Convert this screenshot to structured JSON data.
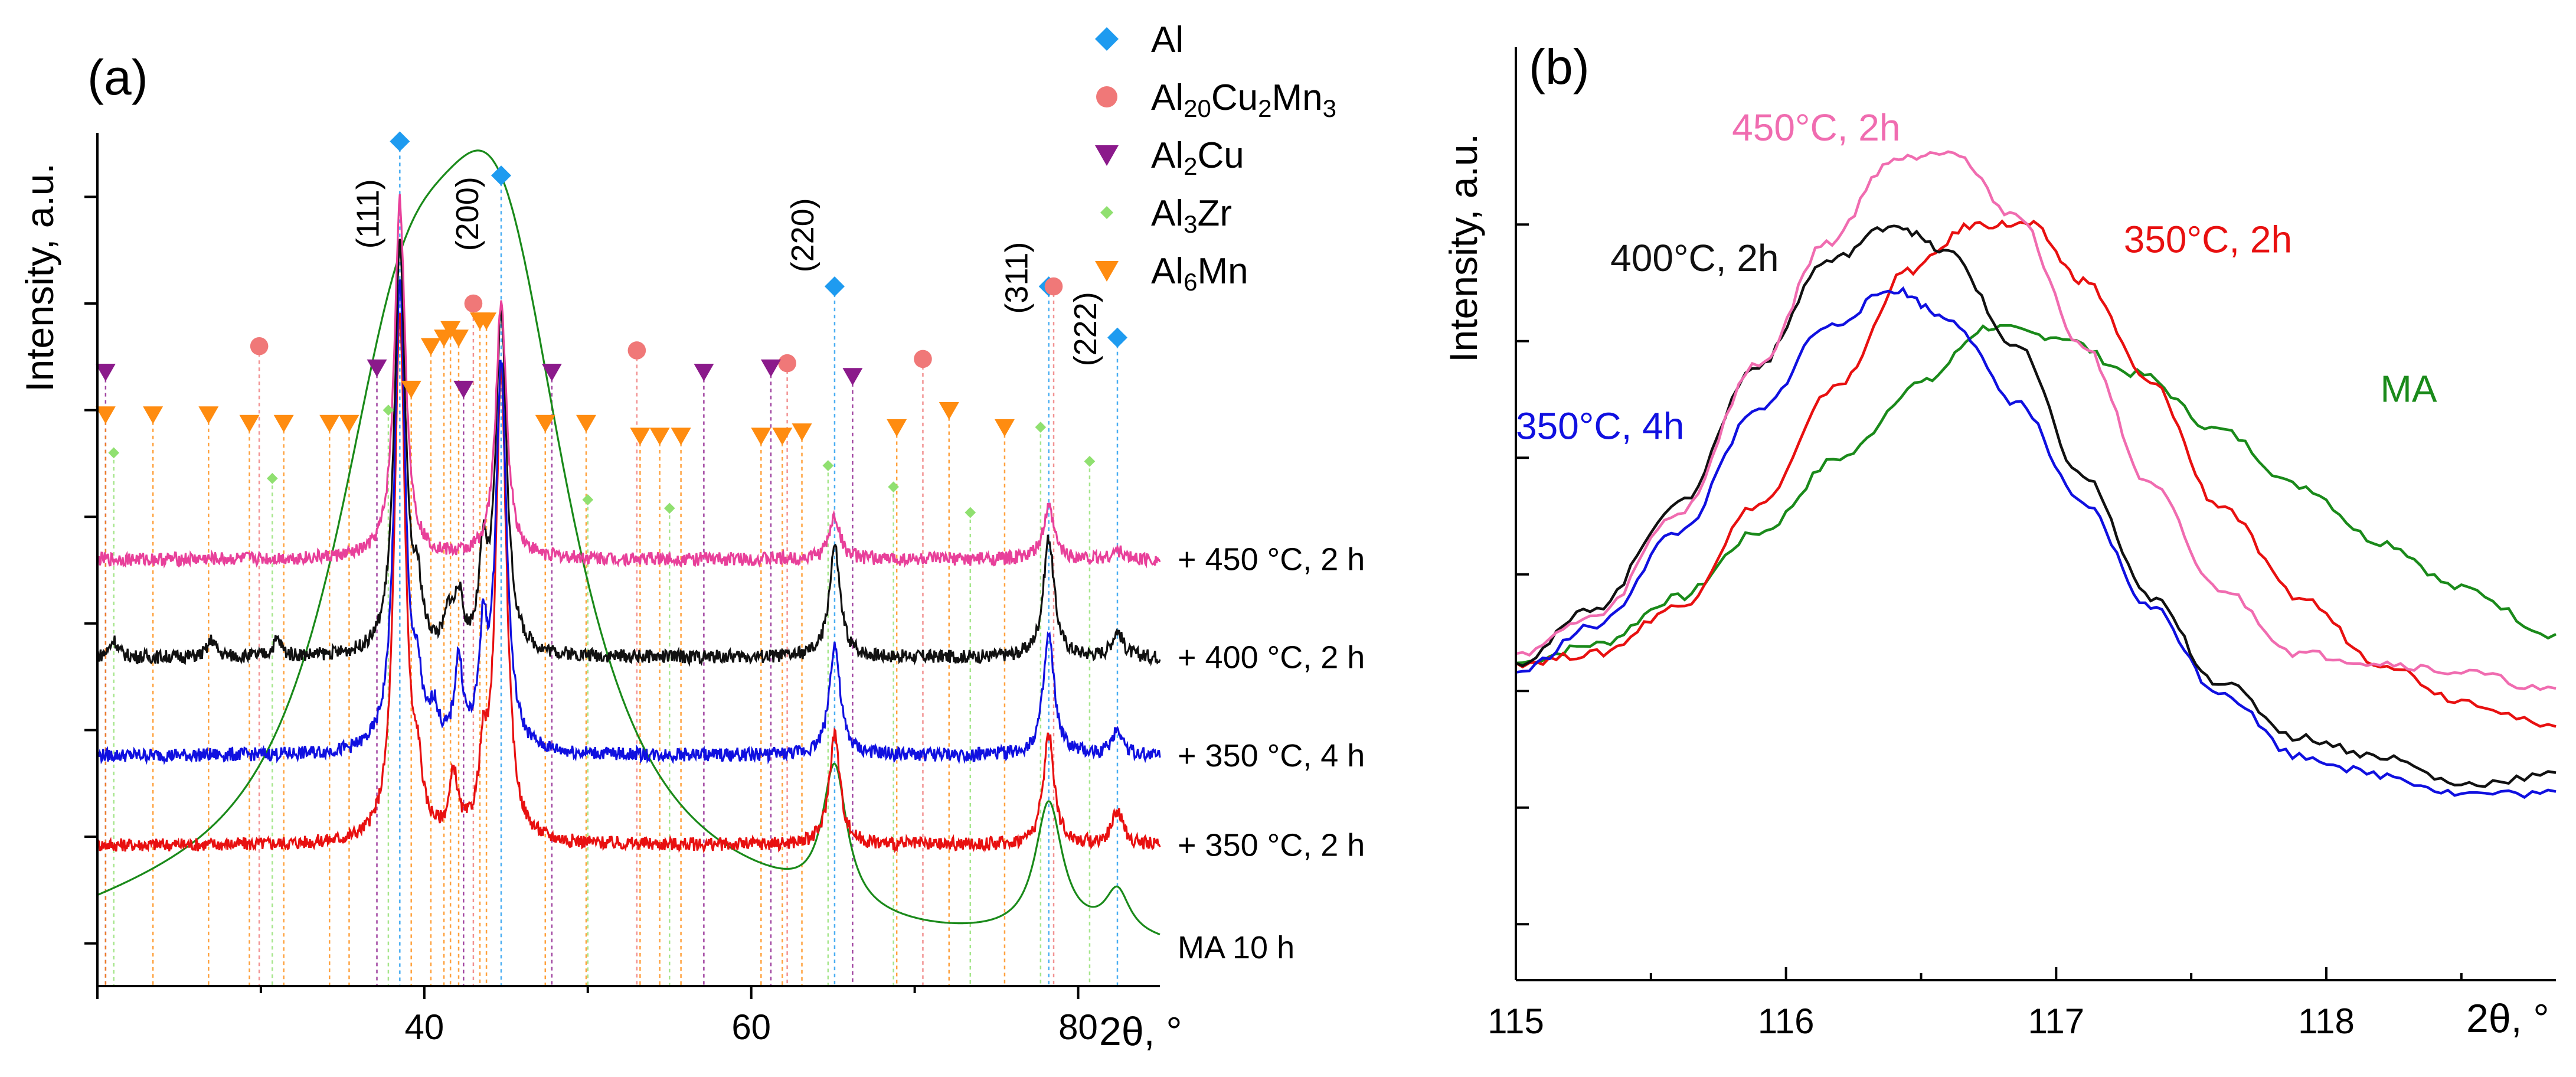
{
  "chart_data": [
    {
      "panel": "(a)",
      "type": "line",
      "title": "",
      "xlabel": "2θ, °",
      "ylabel": "Intensity, a.u.",
      "xlim": [
        20,
        85
      ],
      "ylim": [
        0,
        100
      ],
      "x_ticks": [
        40,
        60,
        80
      ],
      "grid": false,
      "legend_placement": "top-right",
      "legend": [
        {
          "name": "Al",
          "sub": "",
          "marker": "diamond",
          "color": "#1e9bf0"
        },
        {
          "name": "Al20Cu2Mn3",
          "parts": [
            [
              "Al",
              ""
            ],
            [
              "20",
              "sub"
            ],
            [
              "Cu",
              ""
            ],
            [
              "2",
              "sub"
            ],
            [
              "Mn",
              ""
            ],
            [
              "3",
              "sub"
            ]
          ],
          "marker": "circle",
          "color": "#f07878"
        },
        {
          "name": "Al2Cu",
          "parts": [
            [
              "Al",
              ""
            ],
            [
              "2",
              "sub"
            ],
            [
              "Cu",
              ""
            ]
          ],
          "marker": "triangle-down",
          "color": "#8b1a8b"
        },
        {
          "name": "Al3Zr",
          "parts": [
            [
              "Al",
              ""
            ],
            [
              "3",
              "sub"
            ],
            [
              "Zr",
              ""
            ]
          ],
          "marker": "small-diamond",
          "color": "#90e070"
        },
        {
          "name": "Al6Mn",
          "parts": [
            [
              "Al",
              ""
            ],
            [
              "6",
              "sub"
            ],
            [
              "Mn",
              ""
            ]
          ],
          "marker": "triangle-down",
          "color": "#ff8c10"
        }
      ],
      "series": [
        {
          "name": "MA 10 h",
          "color": "#1a8a1a",
          "baseline": 4.5,
          "peaks": [
            [
              38.5,
              5.5,
              50
            ],
            [
              44.7,
              5.5,
              66
            ],
            [
              65.1,
              0.9,
              16
            ],
            [
              78.2,
              1.0,
              15
            ],
            [
              82.4,
              0.9,
              5
            ]
          ]
        },
        {
          "name": "+ 350 °C, 2 h",
          "color": "#e81010",
          "baseline": 16.5,
          "peaks": [
            [
              38.5,
              0.4,
              62
            ],
            [
              39.6,
              0.3,
              6
            ],
            [
              41.8,
              0.3,
              7
            ],
            [
              43.6,
              0.3,
              8
            ],
            [
              44.7,
              0.4,
              55
            ],
            [
              65.1,
              0.4,
              13
            ],
            [
              78.2,
              0.4,
              13
            ],
            [
              82.4,
              0.4,
              4
            ]
          ]
        },
        {
          "name": "+ 350 °C, 4 h",
          "color": "#1010e0",
          "baseline": 27,
          "peaks": [
            [
              38.5,
              0.4,
              55
            ],
            [
              39.6,
              0.3,
              6
            ],
            [
              40.6,
              0.3,
              4
            ],
            [
              42.1,
              0.3,
              10
            ],
            [
              43.6,
              0.3,
              12
            ],
            [
              44.7,
              0.4,
              45
            ],
            [
              65.1,
              0.4,
              13
            ],
            [
              78.2,
              0.4,
              14
            ],
            [
              82.4,
              0.4,
              3
            ]
          ]
        },
        {
          "name": "+ 400 °C, 2 h",
          "color": "#111111",
          "baseline": 38.5,
          "peaks": [
            [
              21.0,
              0.3,
              2
            ],
            [
              27.0,
              0.3,
              2
            ],
            [
              31.0,
              0.3,
              2
            ],
            [
              38.5,
              0.4,
              48
            ],
            [
              39.6,
              0.3,
              6
            ],
            [
              41.5,
              0.3,
              4
            ],
            [
              42.1,
              0.3,
              6
            ],
            [
              43.6,
              0.3,
              10
            ],
            [
              44.7,
              0.4,
              40
            ],
            [
              65.1,
              0.4,
              13
            ],
            [
              78.2,
              0.4,
              14
            ],
            [
              82.4,
              0.4,
              3
            ]
          ]
        },
        {
          "name": "+ 450 °C, 2 h",
          "color": "#e8409a",
          "baseline": 50,
          "peaks": [
            [
              38.5,
              0.4,
              42
            ],
            [
              44.7,
              0.4,
              30
            ],
            [
              65.1,
              0.4,
              5
            ],
            [
              78.2,
              0.4,
              6
            ],
            [
              82.4,
              0.4,
              1
            ]
          ]
        }
      ],
      "miller_labels": [
        "(111)",
        "(200)",
        "(220)",
        "(311)",
        "(222)"
      ],
      "phase_markers": {
        "Al": [
          38.5,
          44.7,
          65.1,
          78.2,
          82.4
        ],
        "Al20Cu2Mn3": [
          29.9,
          43.0,
          53.0,
          62.2,
          70.5,
          78.5
        ],
        "Al2Cu": [
          20.5,
          37.1,
          42.4,
          47.8,
          57.1,
          61.2,
          66.2
        ],
        "Al3Zr": [
          21.0,
          30.7,
          37.8,
          50.0,
          55.0,
          64.7,
          68.7,
          73.4,
          77.7,
          80.7
        ],
        "Al6Mn": [
          20.5,
          23.4,
          26.8,
          29.3,
          31.4,
          34.2,
          35.4,
          39.2,
          40.4,
          41.2,
          41.6,
          42.1,
          43.4,
          43.8,
          47.4,
          49.9,
          53.2,
          54.4,
          55.7,
          60.6,
          61.9,
          63.1,
          68.9,
          72.1,
          75.5
        ]
      }
    },
    {
      "panel": "(b)",
      "type": "line",
      "title": "",
      "xlabel": "2θ, °",
      "ylabel": "Intensity, a.u.",
      "xlim": [
        115,
        118.85
      ],
      "ylim": [
        0,
        100
      ],
      "x_ticks": [
        115,
        116,
        117,
        118
      ],
      "grid": false,
      "series": [
        {
          "name": "MA",
          "label": "MA",
          "color": "#1a8a1a",
          "x": [
            115,
            115.3,
            115.6,
            115.9,
            116.2,
            116.5,
            116.75,
            117.0,
            117.3,
            117.6,
            117.9,
            118.2,
            118.5,
            118.85
          ],
          "y": [
            34,
            36,
            41,
            48,
            56,
            64,
            70,
            69,
            65,
            59,
            53,
            47,
            42,
            37
          ]
        },
        {
          "name": "350 °C, 2h",
          "label": "350°C, 2h",
          "color": "#e81010",
          "x": [
            115,
            115.3,
            115.6,
            115.9,
            116.2,
            116.45,
            116.7,
            116.9,
            117.1,
            117.35,
            117.6,
            117.9,
            118.2,
            118.5,
            118.85
          ],
          "y": [
            34,
            35,
            40,
            51,
            64,
            76,
            81,
            81,
            75,
            64,
            51,
            41,
            34,
            30,
            27
          ]
        },
        {
          "name": "350 °C, 4h",
          "label": "350°C, 4h",
          "color": "#1010e0",
          "x": [
            115,
            115.3,
            115.6,
            115.9,
            116.15,
            116.4,
            116.6,
            116.85,
            117.1,
            117.35,
            117.6,
            117.9,
            118.2,
            118.5,
            118.85
          ],
          "y": [
            33,
            38,
            48,
            61,
            70,
            74,
            71,
            62,
            51,
            40,
            31,
            24,
            22,
            20,
            20
          ]
        },
        {
          "name": "400 °C, 2h",
          "label": "400°C, 2h",
          "color": "#111111",
          "x": [
            115,
            115.3,
            115.6,
            115.9,
            116.15,
            116.4,
            116.6,
            116.85,
            117.1,
            117.35,
            117.6,
            117.9,
            118.2,
            118.5,
            118.85
          ],
          "y": [
            34,
            40,
            51,
            66,
            77,
            81,
            78,
            68,
            54,
            41,
            32,
            26,
            24,
            21,
            22
          ]
        },
        {
          "name": "450 °C, 2h",
          "label": "450°C, 2h",
          "color": "#f06cb0",
          "x": [
            115,
            115.3,
            115.6,
            115.9,
            116.15,
            116.4,
            116.6,
            116.85,
            117.1,
            117.35,
            117.6,
            117.9,
            118.2,
            118.5,
            118.85
          ],
          "y": [
            35,
            39,
            50,
            66,
            79,
            88,
            89,
            82,
            68,
            53,
            42,
            35,
            34,
            33,
            31
          ]
        }
      ]
    }
  ]
}
